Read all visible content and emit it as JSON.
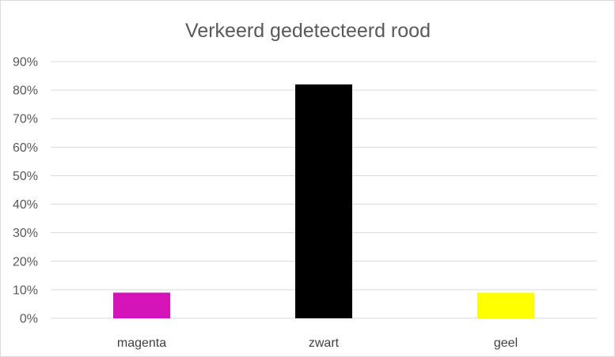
{
  "chart_data": {
    "type": "bar",
    "title": "Verkeerd gedetecteerd rood",
    "categories": [
      "magenta",
      "zwart",
      "geel"
    ],
    "values": [
      0.09,
      0.82,
      0.09
    ],
    "colors": [
      "#d414b8",
      "#000000",
      "#ffff00"
    ],
    "ylim": [
      0,
      0.9
    ],
    "yticks": [
      "0%",
      "10%",
      "20%",
      "30%",
      "40%",
      "50%",
      "60%",
      "70%",
      "80%",
      "90%"
    ],
    "grid": true,
    "legend": "none"
  }
}
